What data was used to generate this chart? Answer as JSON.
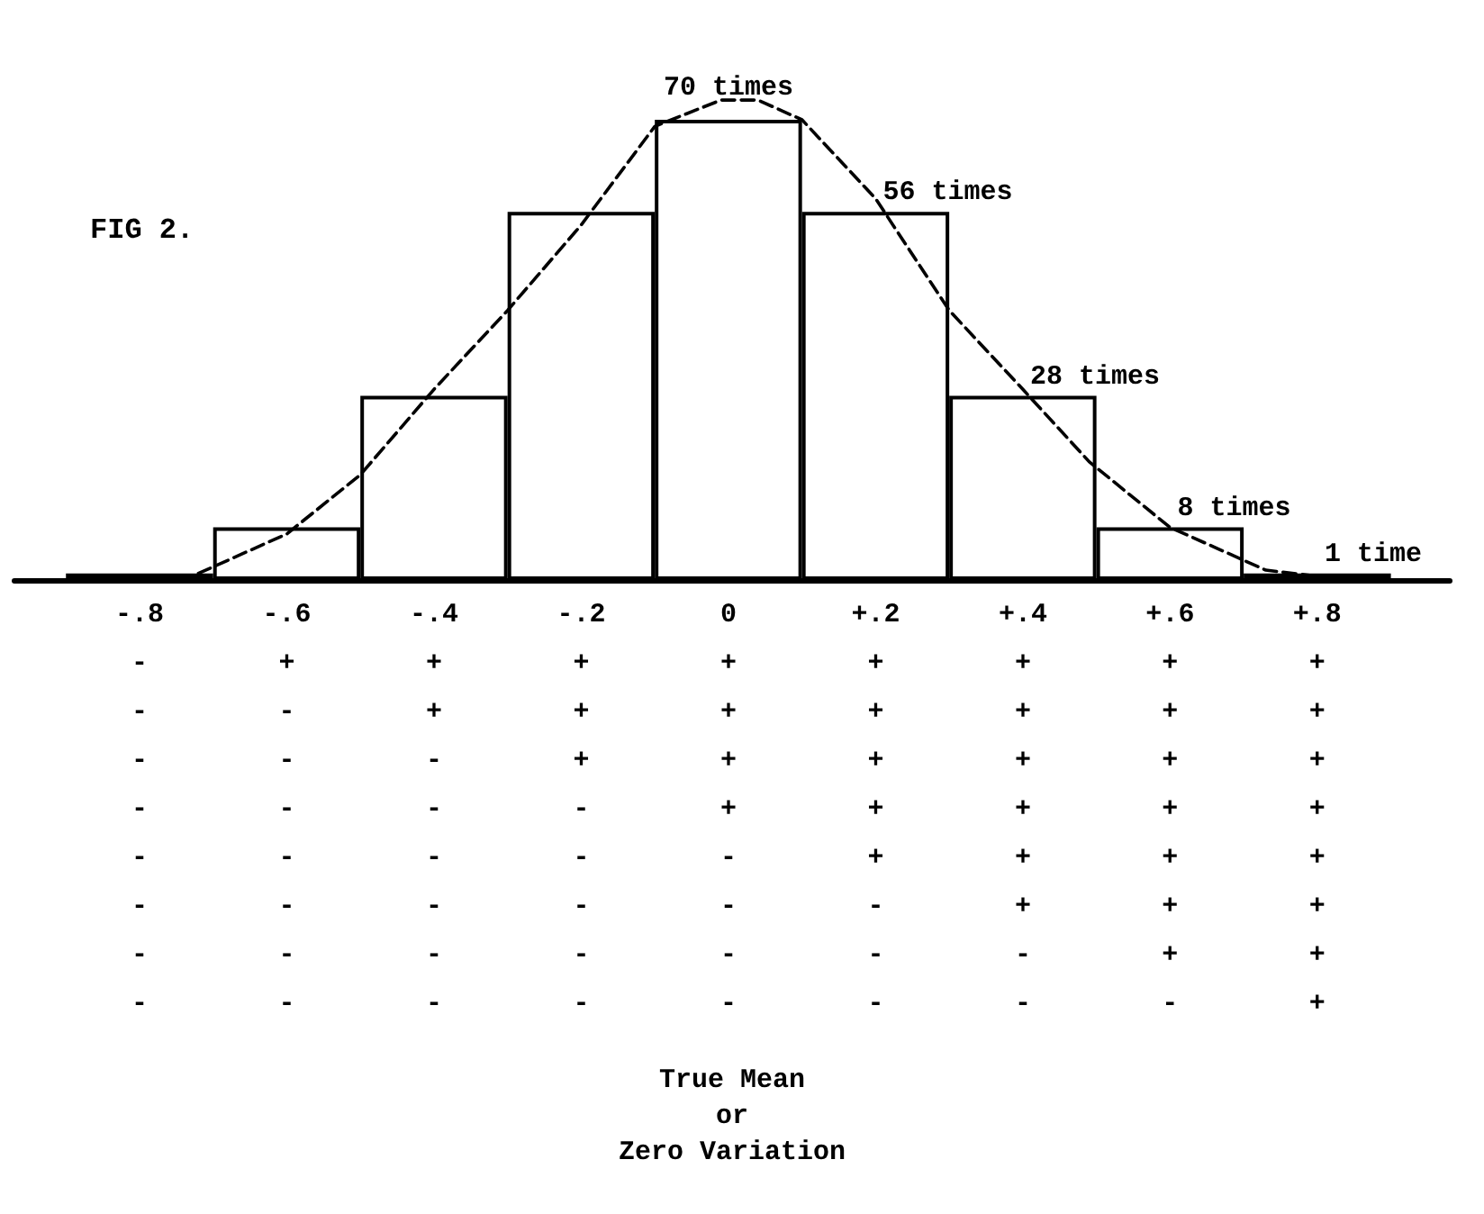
{
  "chart_data": {
    "type": "histogram",
    "title": "FIG 2.",
    "bins": [
      -0.9,
      -0.7,
      -0.5,
      -0.3,
      -0.1,
      0.1,
      0.3,
      0.5,
      0.7,
      0.9
    ],
    "values": [
      1,
      8,
      28,
      56,
      70,
      56,
      28,
      8,
      1
    ],
    "value_labels": [
      null,
      null,
      null,
      null,
      "70 times",
      "56 times",
      "28 times",
      "8 times",
      "1 time"
    ],
    "color": "#000000",
    "series": [
      {
        "type": "line",
        "color": "#000000",
        "line_style": "dashed",
        "marker": "none",
        "x": [
          -0.72,
          -0.6,
          -0.5,
          -0.4,
          -0.3,
          -0.2,
          -0.1,
          -0.01,
          0.04,
          0.1,
          0.2,
          0.3,
          0.4,
          0.49,
          0.6,
          0.73,
          0.82
        ],
        "values": [
          1,
          7,
          16,
          29,
          41,
          54,
          69,
          73,
          73,
          70,
          58,
          41,
          29,
          18,
          8,
          1.5,
          0.3
        ]
      }
    ],
    "xlim": [
      -0.97,
      0.98
    ],
    "xticks": [
      {
        "value": -0.8,
        "label": "-.8"
      },
      {
        "value": -0.6,
        "label": "-.6"
      },
      {
        "value": -0.4,
        "label": "-.4"
      },
      {
        "value": -0.2,
        "label": "-.2"
      },
      0,
      {
        "value": 0.2,
        "label": "+.2"
      },
      {
        "value": 0.4,
        "label": "+.4"
      },
      {
        "value": 0.6,
        "label": "+.6"
      },
      {
        "value": 0.8,
        "label": "+.8"
      }
    ],
    "annotations": [
      "-\n-\n-\n-\n-\n-\n-\n-",
      "+\n-\n-\n-\n-\n-\n-\n-",
      "+\n+\n-\n-\n-\n-\n-\n-",
      "+\n+\n+\n-\n-\n-\n-\n-",
      "+\n+\n+\n+\n-\n-\n-\n-",
      "+\n+\n+\n+\n+\n-\n-\n-",
      "+\n+\n+\n+\n+\n+\n-\n-",
      "+\n+\n+\n+\n+\n+\n+\n-",
      "+\n+\n+\n+\n+\n+\n+\n+",
      "True Mean\nor\nZero Variation"
    ],
    "tick_labels": "x",
    "grid": false
  }
}
